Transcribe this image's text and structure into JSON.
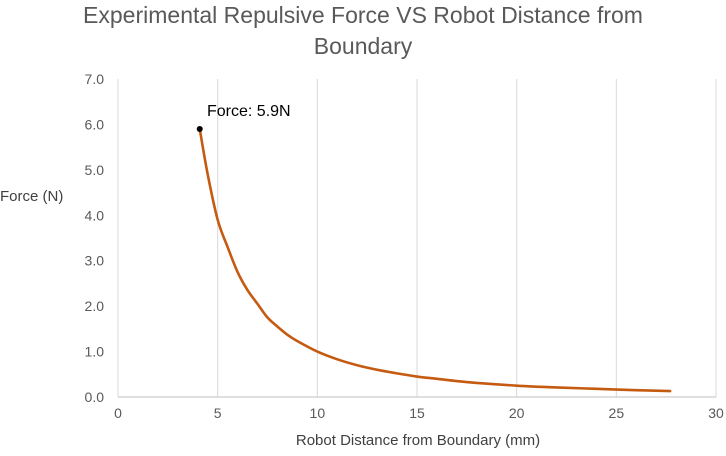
{
  "chart_data": {
    "type": "line",
    "title_line1": "Experimental Repulsive Force VS Robot Distance from",
    "title_line2": "Boundary",
    "xlabel": "Robot Distance from Boundary (mm)",
    "ylabel": "Force (N)",
    "xlim": [
      0,
      30
    ],
    "ylim": [
      0,
      7
    ],
    "x_ticks": [
      "0",
      "5",
      "10",
      "15",
      "20",
      "25",
      "30"
    ],
    "y_ticks": [
      "0.0",
      "1.0",
      "2.0",
      "3.0",
      "4.0",
      "5.0",
      "6.0",
      "7.0"
    ],
    "grid": "vertical",
    "legend": "none",
    "series": [
      {
        "color": "#C55A11",
        "x": [
          4.1,
          4.5,
          5.0,
          5.5,
          6.0,
          6.5,
          7.0,
          7.5,
          8.0,
          8.5,
          9.0,
          10.0,
          11.0,
          12.0,
          13.0,
          14.0,
          15.0,
          16.0,
          17.0,
          18.0,
          20.0,
          22.0,
          24.0,
          26.0,
          27.7
        ],
        "y": [
          5.9,
          4.9,
          3.9,
          3.3,
          2.75,
          2.35,
          2.05,
          1.75,
          1.55,
          1.37,
          1.23,
          1.0,
          0.83,
          0.7,
          0.6,
          0.52,
          0.45,
          0.4,
          0.35,
          0.31,
          0.25,
          0.21,
          0.18,
          0.15,
          0.13
        ]
      }
    ],
    "annotation": {
      "text": "Force: 5.9N",
      "x": 4.1,
      "y": 5.9,
      "marker_color": "#000000"
    }
  }
}
